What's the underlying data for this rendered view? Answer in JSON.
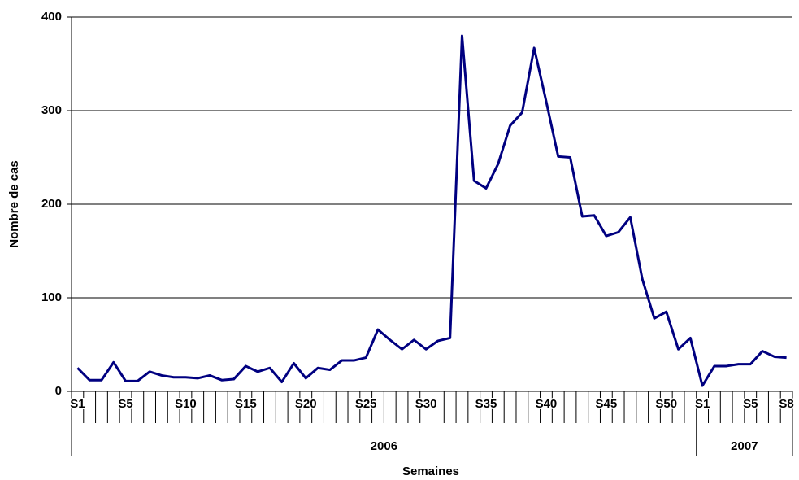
{
  "chart_data": {
    "type": "line",
    "x_label": "Semaines",
    "y_label": "Nombre de cas",
    "categories": [
      "S1",
      null,
      null,
      null,
      "S5",
      null,
      null,
      null,
      null,
      "S10",
      null,
      null,
      null,
      null,
      "S15",
      null,
      null,
      null,
      null,
      "S20",
      null,
      null,
      null,
      null,
      "S25",
      null,
      null,
      null,
      null,
      "S30",
      null,
      null,
      null,
      null,
      "S35",
      null,
      null,
      null,
      null,
      "S40",
      null,
      null,
      null,
      null,
      "S45",
      null,
      null,
      null,
      null,
      "S50",
      null,
      null,
      "S1",
      null,
      null,
      null,
      "S5",
      null,
      null,
      "S8"
    ],
    "groups": [
      "2006",
      "2006",
      "2006",
      "2006",
      "2006",
      "2006",
      "2006",
      "2006",
      "2006",
      "2006",
      "2006",
      "2006",
      "2006",
      "2006",
      "2006",
      "2006",
      "2006",
      "2006",
      "2006",
      "2006",
      "2006",
      "2006",
      "2006",
      "2006",
      "2006",
      "2006",
      "2006",
      "2006",
      "2006",
      "2006",
      "2006",
      "2006",
      "2006",
      "2006",
      "2006",
      "2006",
      "2006",
      "2006",
      "2006",
      "2006",
      "2006",
      "2006",
      "2006",
      "2006",
      "2006",
      "2006",
      "2006",
      "2006",
      "2006",
      "2006",
      "2006",
      "2006",
      "2007",
      "2007",
      "2007",
      "2007",
      "2007",
      "2007",
      "2007",
      "2007"
    ],
    "series": [
      {
        "color": "#000080",
        "values": [
          25,
          12,
          12,
          31,
          11,
          11,
          21,
          17,
          15,
          15,
          14,
          17,
          12,
          13,
          27,
          21,
          25,
          10,
          30,
          14,
          25,
          23,
          33,
          33,
          36,
          66,
          55,
          45,
          55,
          45,
          54,
          57,
          380,
          225,
          217,
          243,
          284,
          298,
          367,
          310,
          251,
          250,
          187,
          188,
          166,
          170,
          186,
          120,
          78,
          85,
          45,
          57,
          6,
          27,
          27,
          29,
          29,
          43,
          37,
          36
        ]
      }
    ],
    "ylim": [
      0,
      400
    ],
    "yticks": [
      0,
      100,
      200,
      300,
      400
    ],
    "grid": true
  }
}
